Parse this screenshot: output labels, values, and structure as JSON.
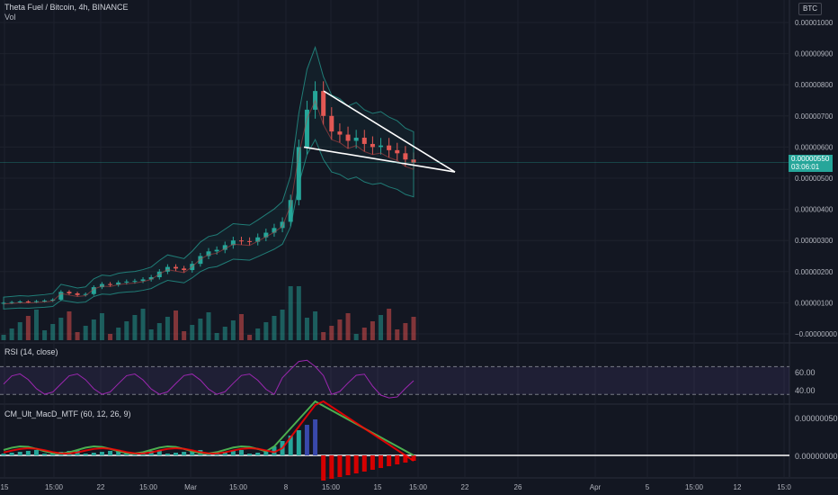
{
  "header": {
    "title": "Theta Fuel / Bitcoin, 4h, BINANCE",
    "volume_label": "Vol",
    "currency": "BTC"
  },
  "price_tag": {
    "price": "0.00000550",
    "countdown": "03:06:01"
  },
  "rsi": {
    "title": "RSI (14, close)",
    "levels": [
      "60.00",
      "40.00"
    ]
  },
  "macd": {
    "title": "CM_Ult_MacD_MTF (60, 12, 26, 9)",
    "levels": [
      "0.00000050",
      "0.00000000"
    ]
  },
  "colors": {
    "up": "#26a69a",
    "down": "#ef5350",
    "bollinger": "#26a69a",
    "rsi": "#9c27b0",
    "background": "#131722"
  },
  "chart_data": {
    "type": "candlestick",
    "title": "Theta Fuel / Bitcoin, 4h, BINANCE",
    "y_tick_labels": [
      "0.00001000",
      "0.00000900",
      "0.00000800",
      "0.00000700",
      "0.00000600",
      "0.00000500",
      "0.00000400",
      "0.00000300",
      "0.00000200",
      "0.00000100",
      "−0.00000000"
    ],
    "x_tick_labels": [
      "15",
      "15:00",
      "22",
      "15:00",
      "Mar",
      "15:00",
      "8",
      "15:00",
      "15",
      "15:00",
      "22",
      "26",
      "Apr",
      "5",
      "15:00",
      "12",
      "15:0"
    ],
    "series_close": [
      1e-06,
      1.02e-06,
      1.04e-06,
      1.03e-06,
      1.05e-06,
      1.07e-06,
      1.1e-06,
      1.35e-06,
      1.3e-06,
      1.25e-06,
      1.28e-06,
      1.5e-06,
      1.6e-06,
      1.58e-06,
      1.65e-06,
      1.68e-06,
      1.7e-06,
      1.75e-06,
      1.82e-06,
      2e-06,
      2.15e-06,
      2.1e-06,
      2.05e-06,
      2.25e-06,
      2.5e-06,
      2.65e-06,
      2.7e-06,
      2.85e-06,
      3e-06,
      2.98e-06,
      2.96e-06,
      3.1e-06,
      3.25e-06,
      3.4e-06,
      3.6e-06,
      4.3e-06,
      6e-06,
      7.2e-06,
      7.8e-06,
      7e-06,
      6.5e-06,
      6.4e-06,
      6.2e-06,
      6.3e-06,
      6.1e-06,
      6e-06,
      6.05e-06,
      5.9e-06,
      5.8e-06,
      5.6e-06,
      5.5e-06
    ],
    "triangle": {
      "upper": [
        [
          7.8e-06,
          8e-06
        ],
        [
          5.2e-06,
          5.2e-06
        ]
      ],
      "lower": [
        [
          6e-06,
          6e-06
        ],
        [
          5.25e-06,
          5.25e-06
        ]
      ]
    },
    "rsi_levels": [
      70,
      30
    ],
    "grid": true
  }
}
